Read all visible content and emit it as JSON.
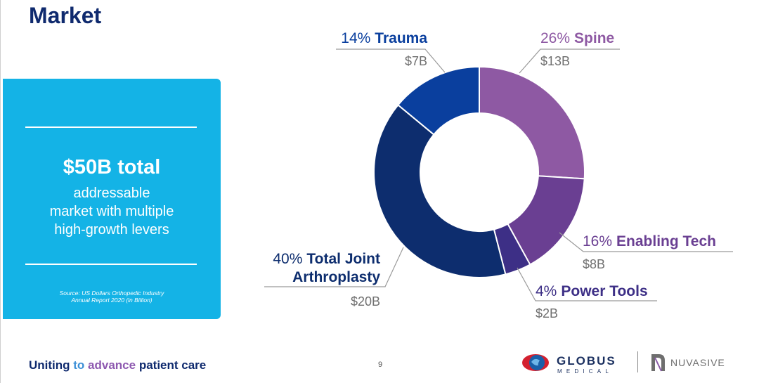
{
  "page": {
    "title": "Market",
    "page_number": "9"
  },
  "callout": {
    "headline": "$50B total",
    "desc_line1": "addressable",
    "desc_line2": "market with multiple",
    "desc_line3": "high-growth levers",
    "source_line1": "Source: US Dollars Orthopedic Industry",
    "source_line2": "Annual Report 2020 (in Billion)"
  },
  "footer": {
    "tagline_part1": "Uniting ",
    "tagline_part2": "to ",
    "tagline_part3": "advance ",
    "tagline_part4": "patient care",
    "globus_line1": "GLOBUS",
    "globus_line2": "MEDICAL",
    "nuvasive": "NUVASIVE"
  },
  "colors": {
    "title": "#0f2a6e",
    "callout_bg": "#14b3e6",
    "spine": "#8e59a3",
    "enabling_tech": "#6a3f92",
    "power_tools": "#3d2f86",
    "total_joint": "#0d2d6e",
    "trauma": "#0a3f9e"
  },
  "chart_data": {
    "type": "pie",
    "donut": true,
    "unit": "billion USD",
    "slices": [
      {
        "pct": "26%",
        "name": "Spine",
        "value": 13,
        "value_label": "$13B",
        "color": "#8e59a3",
        "text_color": "#8e59a3"
      },
      {
        "pct": "16%",
        "name": "Enabling Tech",
        "value": 8,
        "value_label": "$8B",
        "color": "#6a3f92",
        "text_color": "#6a3f92"
      },
      {
        "pct": "4%",
        "name": "Power Tools",
        "value": 2,
        "value_label": "$2B",
        "color": "#3d2f86",
        "text_color": "#3d2f86"
      },
      {
        "pct": "40%",
        "name_line1": "Total Joint",
        "name_line2": "Arthroplasty",
        "name": "Total Joint Arthroplasty",
        "value": 20,
        "value_label": "$20B",
        "color": "#0d2d6e",
        "text_color": "#0d2d6e"
      },
      {
        "pct": "14%",
        "name": "Trauma",
        "value": 7,
        "value_label": "$7B",
        "color": "#0a3f9e",
        "text_color": "#0a3f9e"
      }
    ]
  }
}
